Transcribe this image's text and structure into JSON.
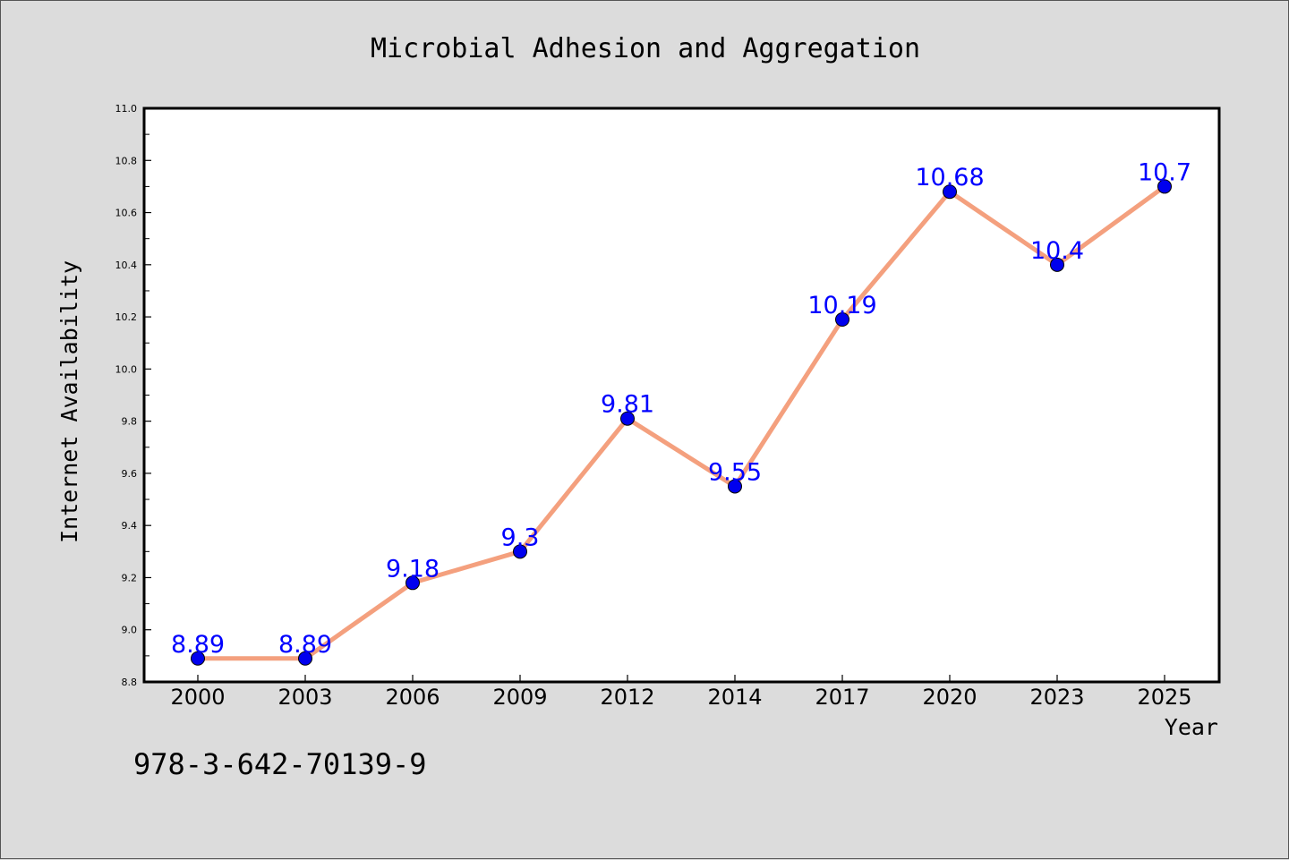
{
  "chart_data": {
    "type": "line",
    "title": "Microbial Adhesion and Aggregation",
    "xlabel": "Year",
    "ylabel": "Internet Availability",
    "categories": [
      "2000",
      "2003",
      "2006",
      "2009",
      "2012",
      "2014",
      "2017",
      "2020",
      "2023",
      "2025"
    ],
    "series": [
      {
        "values": [
          8.89,
          8.89,
          9.18,
          9.3,
          9.81,
          9.55,
          10.19,
          10.68,
          10.4,
          10.7
        ],
        "data_labels": [
          "8.89",
          "8.89",
          "9.18",
          "9.3",
          "9.81",
          "9.55",
          "10.19",
          "10.68",
          "10.4",
          "10.7"
        ]
      }
    ],
    "ylim": [
      8.8,
      11.0
    ],
    "yticks": [
      "8.8",
      "9.0",
      "9.2",
      "9.4",
      "9.6",
      "9.8",
      "10.0",
      "10.2",
      "10.4",
      "10.6",
      "10.8",
      "11.0"
    ],
    "grid": false,
    "legend": "none",
    "line_color": "#f4a07e",
    "marker_color": "#0000ee",
    "label_color": "#0000ff",
    "background_color": "#dcdcdc",
    "plot_background": "#ffffff"
  },
  "footer": {
    "isbn": "978-3-642-70139-9"
  }
}
